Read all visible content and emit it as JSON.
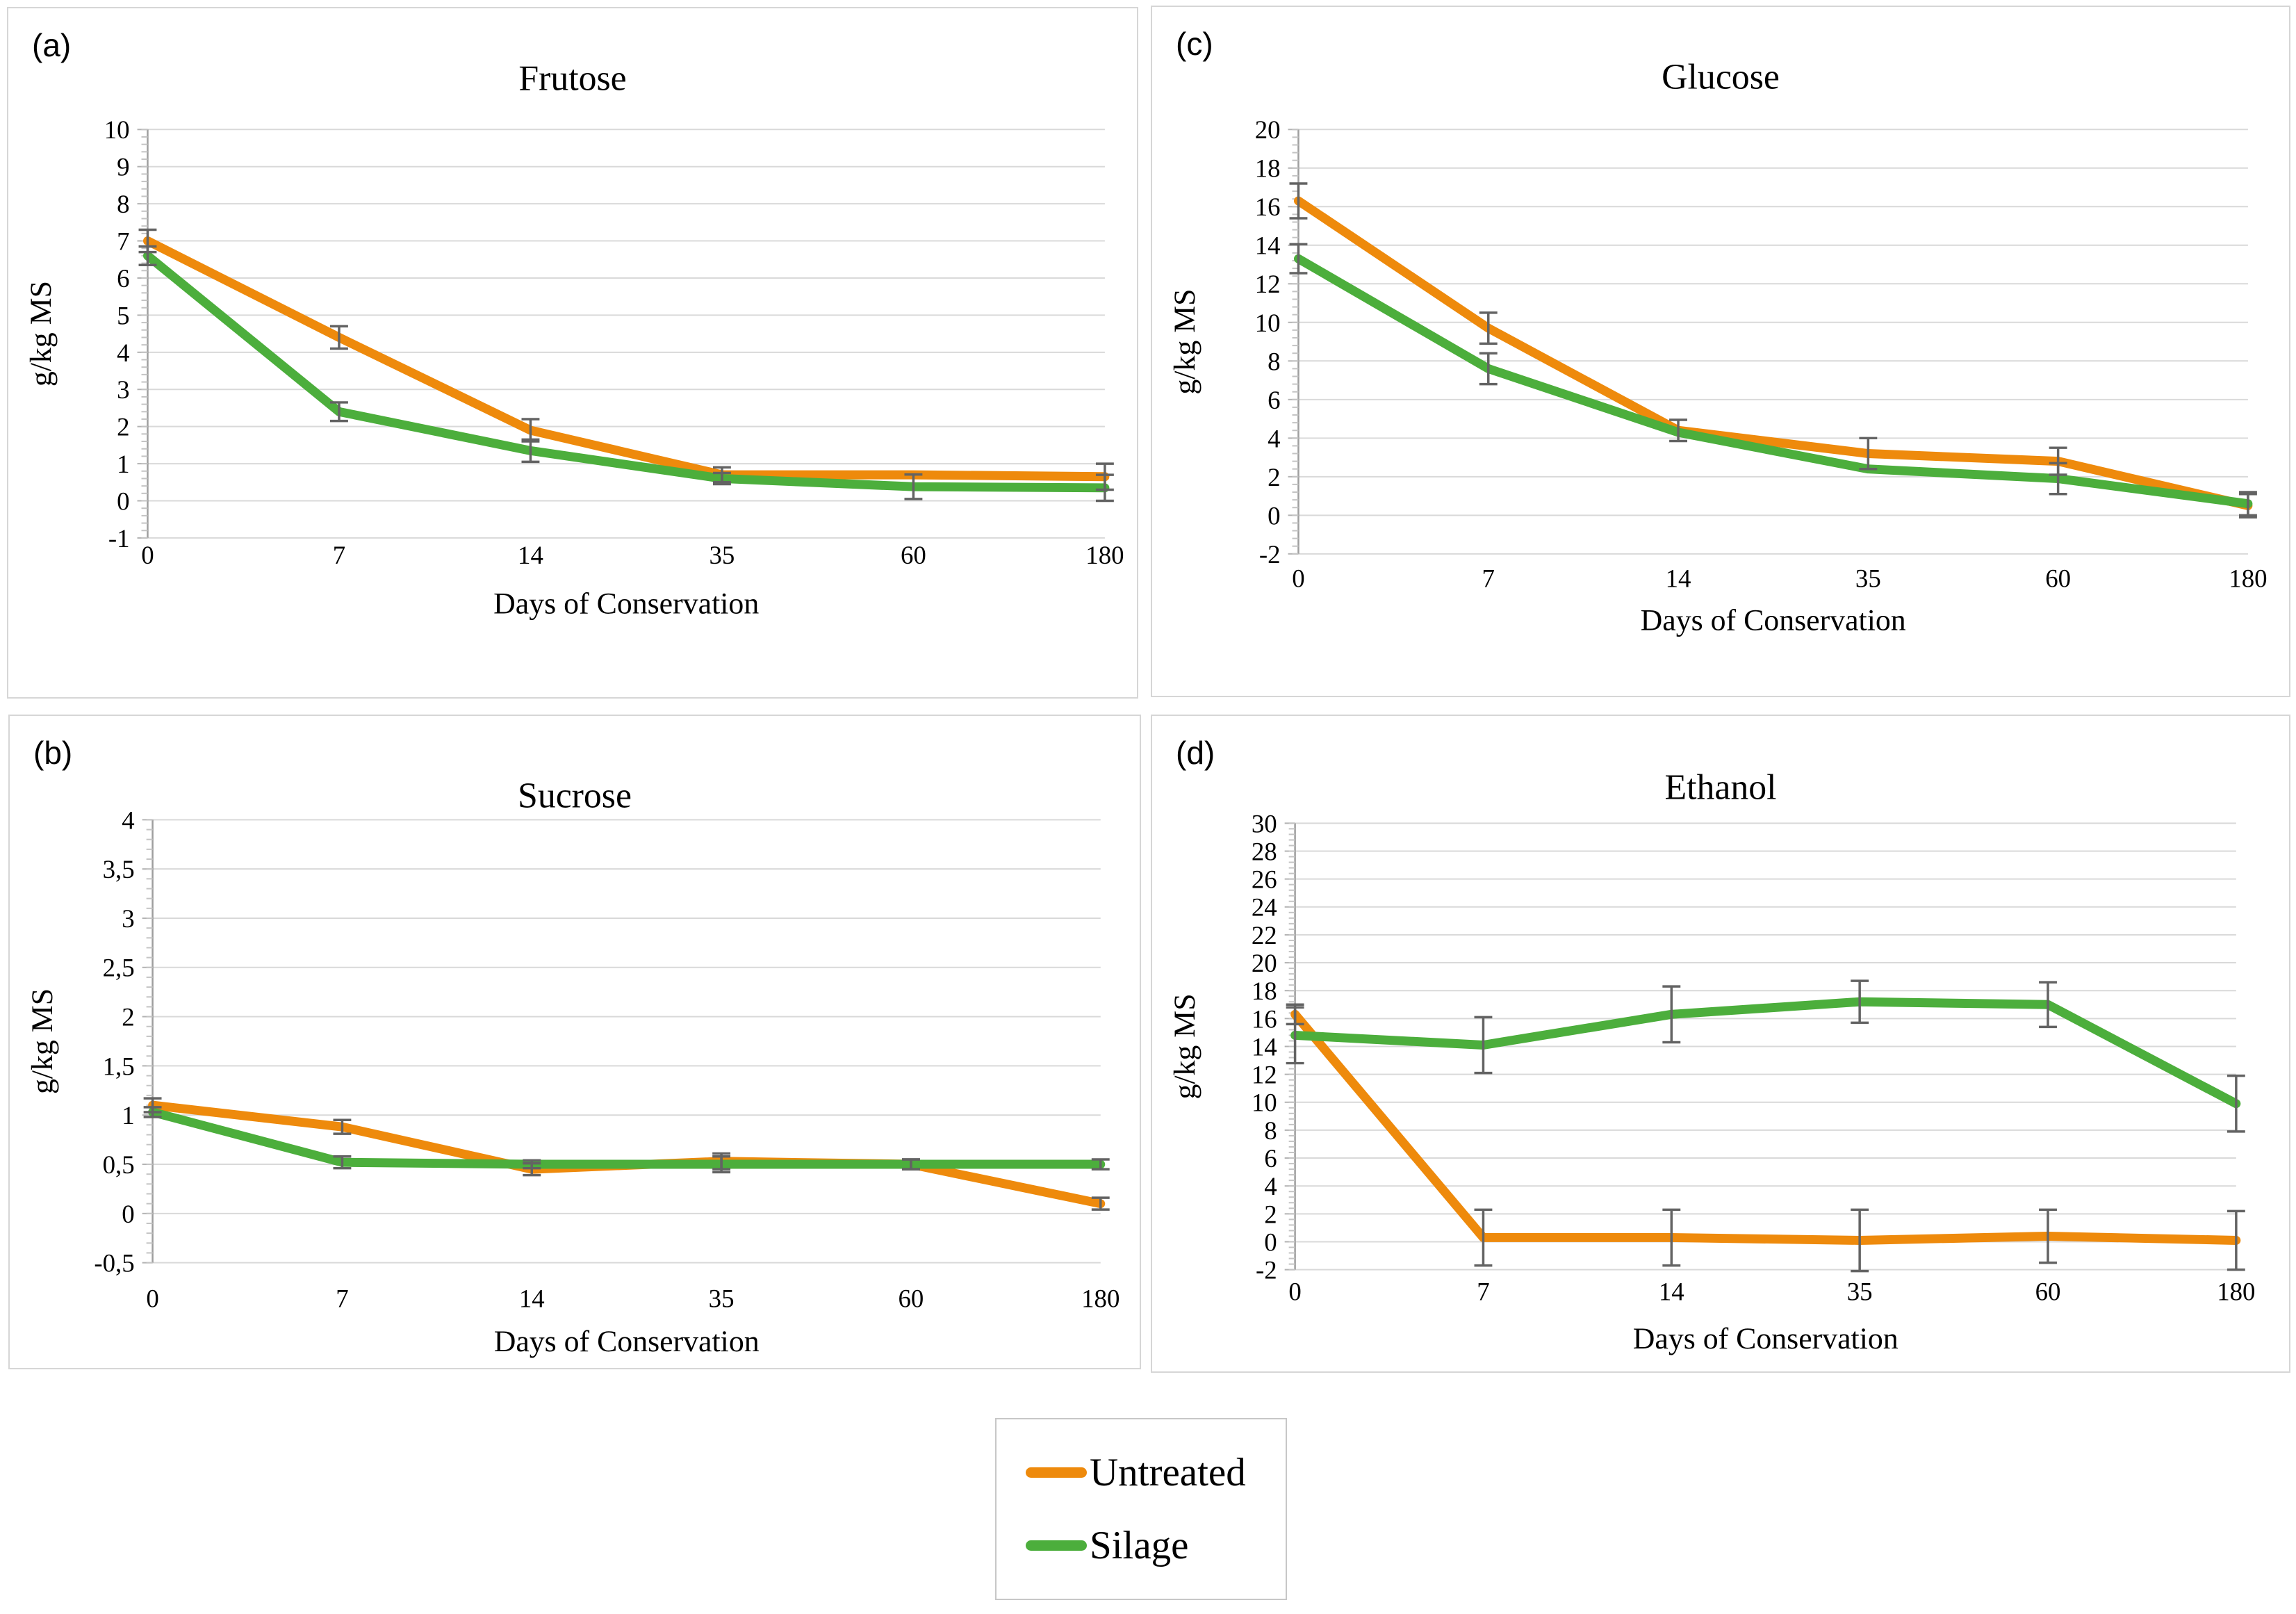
{
  "legend": {
    "items": [
      {
        "label": "Untreated",
        "color": "#EE8A0C"
      },
      {
        "label": "Silage",
        "color": "#4CAE3C"
      }
    ]
  },
  "shared": {
    "xlabel": "Days of Conservation",
    "ylabel": "g/kg MS",
    "error_bar_color": "#636363",
    "gridline_color": "#d9d9d9",
    "axis_color": "#9e9e9e"
  },
  "chart_data": [
    {
      "type": "line",
      "panel_letter": "(a)",
      "title": "Frutose",
      "xlabel": "Days of Conservation",
      "ylabel": "g/kg MS",
      "categories": [
        "0",
        "7",
        "14",
        "35",
        "60",
        "180"
      ],
      "ylim": [
        -1,
        10
      ],
      "ytick_values": [
        10,
        9,
        8,
        7,
        6,
        5,
        4,
        3,
        2,
        1,
        0,
        -1
      ],
      "ytick_labels": [
        "10",
        "9",
        "8",
        "7",
        "6",
        "5",
        "4",
        "3",
        "2",
        "1",
        "0",
        "-1"
      ],
      "grid": true,
      "legend_position": "none",
      "series": [
        {
          "name": "Untreated",
          "color": "#EE8A0C",
          "values": [
            7.0,
            4.4,
            1.9,
            0.7,
            0.7,
            0.65
          ],
          "errors": [
            0.3,
            0.3,
            0.3,
            0.2,
            0,
            0.35
          ]
        },
        {
          "name": "Silage",
          "color": "#4CAE3C",
          "values": [
            6.6,
            2.4,
            1.35,
            0.6,
            0.38,
            0.35
          ],
          "errors": [
            0.25,
            0.25,
            0.3,
            0.15,
            0.33,
            0.35
          ]
        }
      ]
    },
    {
      "type": "line",
      "panel_letter": "(c)",
      "title": "Glucose",
      "xlabel": "Days of Conservation",
      "ylabel": "g/kg MS",
      "categories": [
        "0",
        "7",
        "14",
        "35",
        "60",
        "180"
      ],
      "ylim": [
        -2,
        20
      ],
      "ytick_values": [
        20,
        18,
        16,
        14,
        12,
        10,
        8,
        6,
        4,
        2,
        0,
        -2
      ],
      "ytick_labels": [
        "20",
        "18",
        "16",
        "14",
        "12",
        "10",
        "8",
        "6",
        "4",
        "2",
        "0",
        "-2"
      ],
      "grid": true,
      "legend_position": "none",
      "series": [
        {
          "name": "Untreated",
          "color": "#EE8A0C",
          "values": [
            16.3,
            9.7,
            4.4,
            3.2,
            2.8,
            0.5
          ],
          "errors": [
            0.9,
            0.8,
            0.55,
            0.8,
            0.7,
            0.6
          ]
        },
        {
          "name": "Silage",
          "color": "#4CAE3C",
          "values": [
            13.3,
            7.6,
            4.3,
            2.4,
            1.9,
            0.6
          ],
          "errors": [
            0.75,
            0.8,
            0,
            0,
            0.8,
            0.6
          ]
        }
      ]
    },
    {
      "type": "line",
      "panel_letter": "(b)",
      "title": "Sucrose",
      "xlabel": "Days of Conservation",
      "ylabel": "g/kg MS",
      "categories": [
        "0",
        "7",
        "14",
        "35",
        "60",
        "180"
      ],
      "ylim": [
        -0.5,
        4
      ],
      "ytick_values": [
        4,
        3.5,
        3,
        2.5,
        2,
        1.5,
        1,
        0.5,
        0,
        -0.5
      ],
      "ytick_labels": [
        "4",
        "3,5",
        "3",
        "2,5",
        "2",
        "1,5",
        "1",
        "0,5",
        "0",
        "-0,5"
      ],
      "grid": true,
      "legend_position": "none",
      "series": [
        {
          "name": "Untreated",
          "color": "#EE8A0C",
          "values": [
            1.1,
            0.88,
            0.45,
            0.53,
            0.5,
            0.1
          ],
          "errors": [
            0.07,
            0.07,
            0.06,
            0.08,
            0.05,
            0.06
          ]
        },
        {
          "name": "Silage",
          "color": "#4CAE3C",
          "values": [
            1.03,
            0.52,
            0.5,
            0.5,
            0.5,
            0.5
          ],
          "errors": [
            0.05,
            0.06,
            0.04,
            0.08,
            0.05,
            0.05
          ]
        }
      ]
    },
    {
      "type": "line",
      "panel_letter": "(d)",
      "title": "Ethanol",
      "xlabel": "Days of Conservation",
      "ylabel": "g/kg MS",
      "categories": [
        "0",
        "7",
        "14",
        "35",
        "60",
        "180"
      ],
      "ylim": [
        -2,
        30
      ],
      "ytick_values": [
        30,
        28,
        26,
        24,
        22,
        20,
        18,
        16,
        14,
        12,
        10,
        8,
        6,
        4,
        2,
        0,
        -2
      ],
      "ytick_labels": [
        "30",
        "28",
        "26",
        "24",
        "22",
        "20",
        "18",
        "16",
        "14",
        "12",
        "10",
        "8",
        "6",
        "4",
        "2",
        "0",
        "-2"
      ],
      "grid": true,
      "legend_position": "none",
      "series": [
        {
          "name": "Untreated",
          "color": "#EE8A0C",
          "values": [
            16.3,
            0.3,
            0.3,
            0.1,
            0.4,
            0.1
          ],
          "errors": [
            0.7,
            2.0,
            2.0,
            2.2,
            1.9,
            2.1
          ]
        },
        {
          "name": "Silage",
          "color": "#4CAE3C",
          "values": [
            14.8,
            14.1,
            16.3,
            17.2,
            17.0,
            9.9
          ],
          "errors": [
            2.0,
            2.0,
            2.0,
            1.5,
            1.6,
            2.0
          ]
        }
      ]
    }
  ]
}
